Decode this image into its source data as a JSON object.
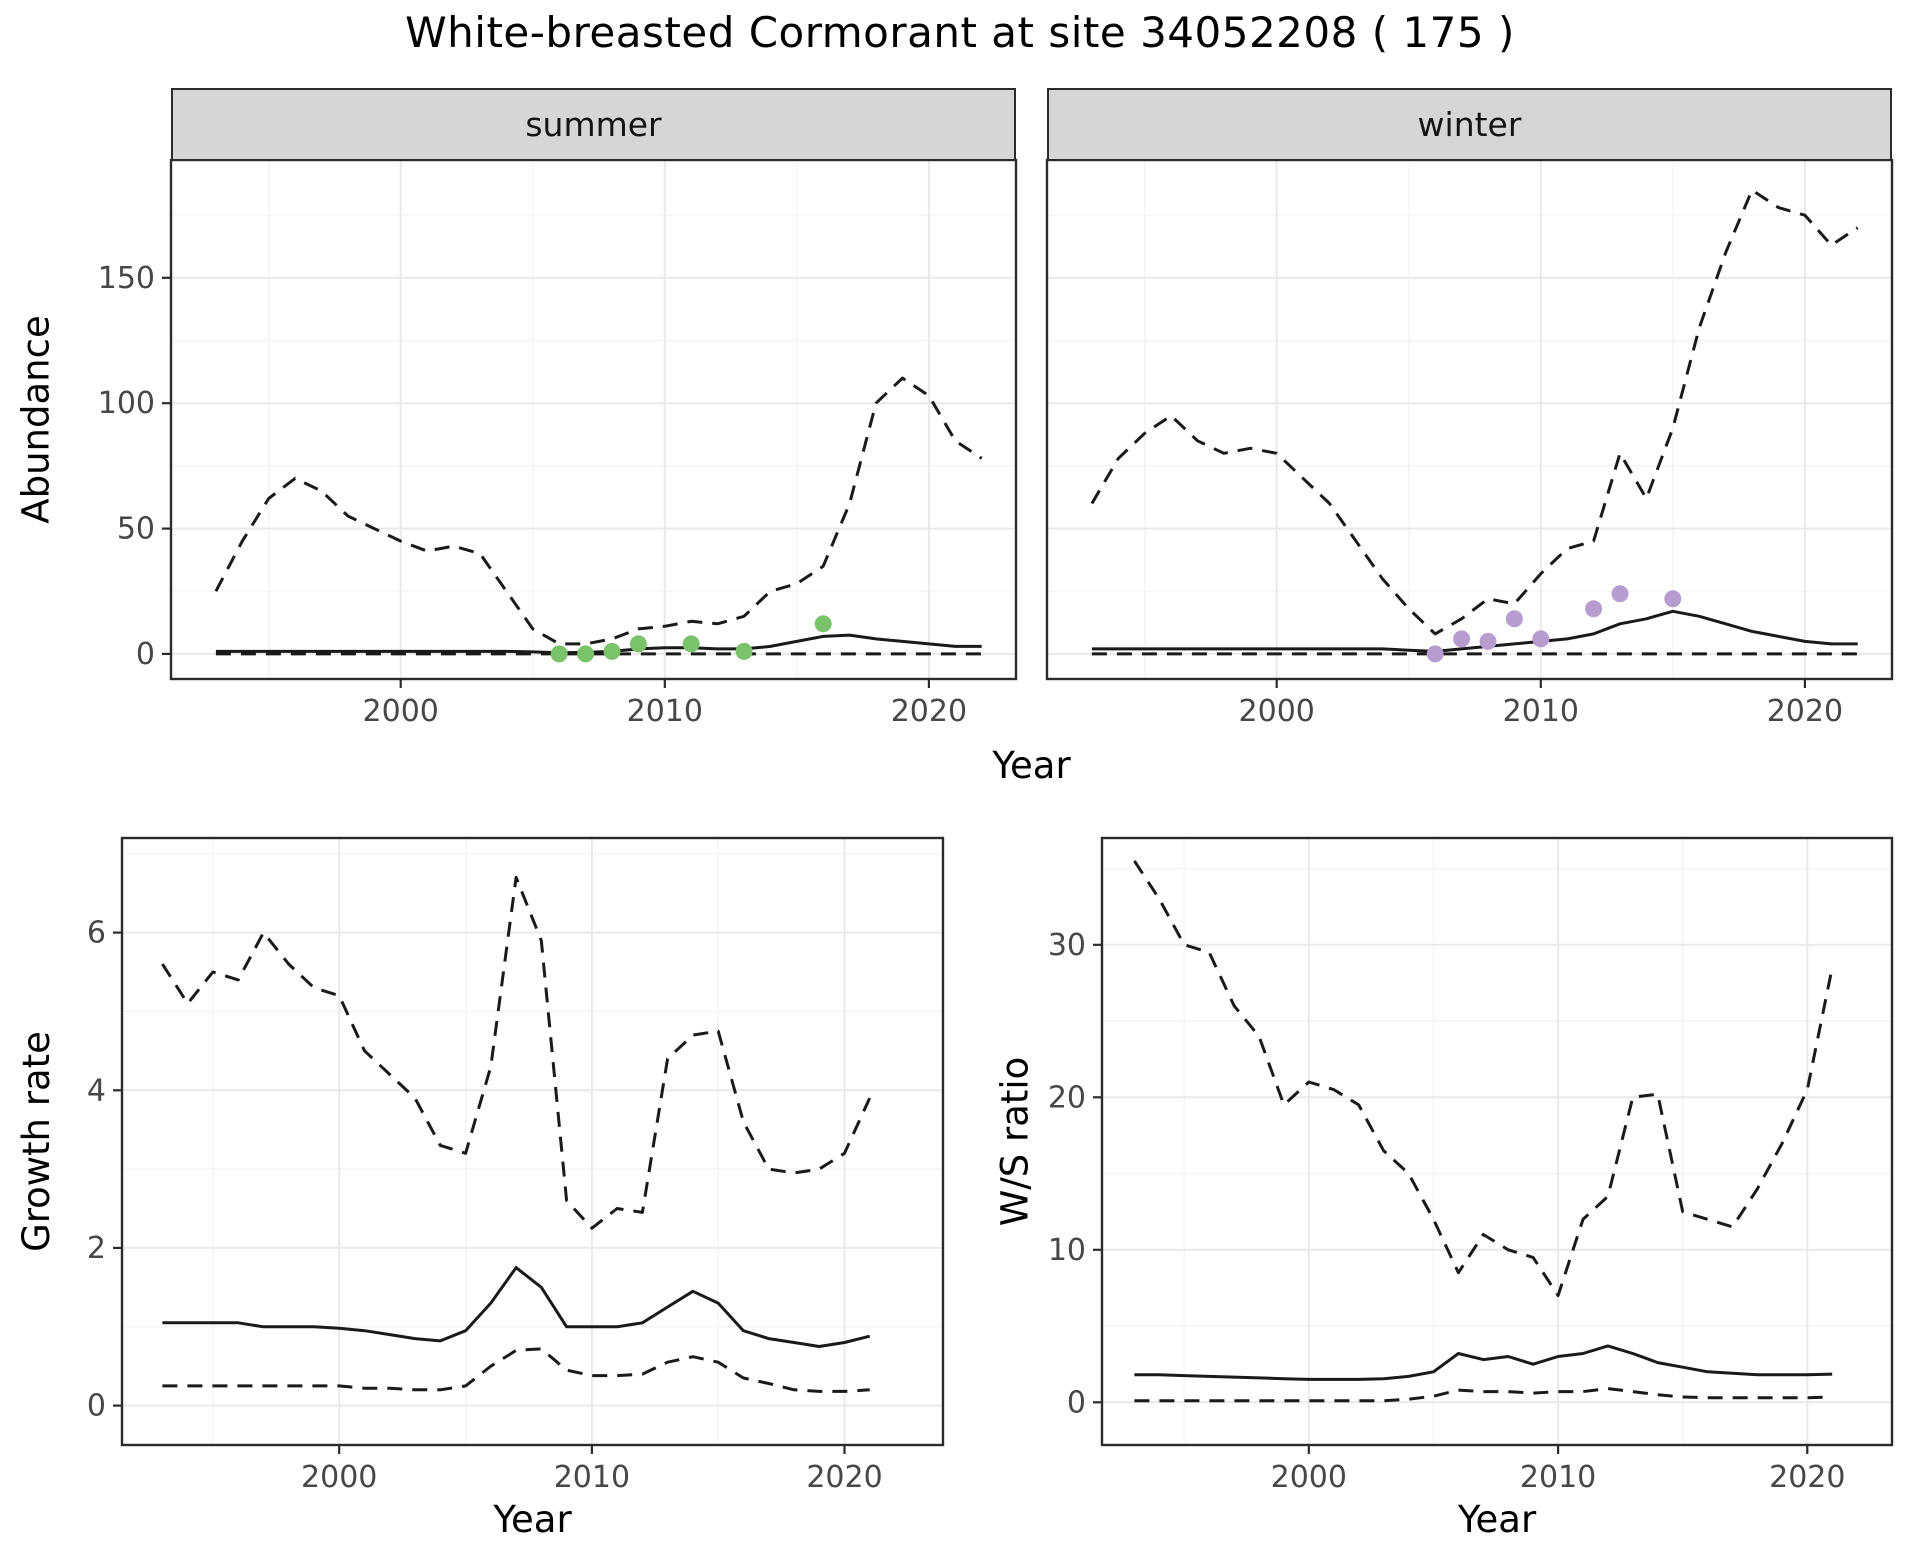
{
  "title": "White-breasted Cormorant at site 34052208 ( 175 )",
  "colors": {
    "accent_green": "#7ac36a",
    "accent_purple": "#b79cd0",
    "line": "#1a1a1a",
    "grid_major": "#e9e9e9",
    "grid_minor": "#f4f4f4",
    "strip_bg": "#d6d6d6",
    "border": "#2b2b2b",
    "tick_text": "#474747"
  },
  "chart_data": [
    {
      "id": "abundance-summer",
      "type": "line",
      "facet_label": "summer",
      "ylabel": "Abundance",
      "xlabel": "Year",
      "xlim": [
        1991.3,
        2023.3
      ],
      "ylim": [
        -10,
        197
      ],
      "xticks": [
        2000,
        2010,
        2020
      ],
      "yticks": [
        0,
        50,
        100,
        150
      ],
      "x": [
        1993,
        1994,
        1995,
        1996,
        1997,
        1998,
        1999,
        2000,
        2001,
        2002,
        2003,
        2004,
        2005,
        2006,
        2007,
        2008,
        2009,
        2010,
        2011,
        2012,
        2013,
        2014,
        2015,
        2016,
        2017,
        2018,
        2019,
        2020,
        2021,
        2022
      ],
      "series": [
        {
          "name": "upper-ci",
          "style": "dashed",
          "values": [
            25,
            45,
            62,
            70,
            65,
            55,
            50,
            45,
            41,
            43,
            40,
            25,
            10,
            4,
            4,
            6,
            10,
            11,
            13,
            12,
            15,
            25,
            28,
            35,
            60,
            100,
            110,
            103,
            85,
            78
          ]
        },
        {
          "name": "mean",
          "style": "solid",
          "values": [
            1,
            1,
            1,
            1,
            1,
            1,
            1,
            1,
            1,
            1,
            1,
            1,
            0.8,
            0.5,
            0.6,
            1,
            2,
            2.5,
            2.5,
            2,
            2,
            3,
            5,
            7,
            7.5,
            6,
            5,
            4,
            3,
            3
          ]
        },
        {
          "name": "lower-ci",
          "style": "dashed",
          "values": [
            0,
            0,
            0,
            0,
            0,
            0,
            0,
            0,
            0,
            0,
            0,
            0,
            0,
            0,
            0,
            0,
            0,
            0,
            0,
            0,
            0,
            0,
            0,
            0,
            0,
            0,
            0,
            0,
            0,
            0
          ]
        }
      ],
      "points": {
        "name": "observed-counts",
        "color": "#7ac36a",
        "x": [
          2006,
          2007,
          2008,
          2009,
          2011,
          2013,
          2016
        ],
        "y": [
          0,
          0,
          1,
          4,
          4,
          1,
          12
        ]
      }
    },
    {
      "id": "abundance-winter",
      "type": "line",
      "facet_label": "winter",
      "ylabel": "Abundance",
      "xlabel": "Year",
      "xlim": [
        1991.3,
        2023.3
      ],
      "ylim": [
        -10,
        197
      ],
      "xticks": [
        2000,
        2010,
        2020
      ],
      "yticks": [
        0,
        50,
        100,
        150
      ],
      "x": [
        1993,
        1994,
        1995,
        1996,
        1997,
        1998,
        1999,
        2000,
        2001,
        2002,
        2003,
        2004,
        2005,
        2006,
        2007,
        2008,
        2009,
        2010,
        2011,
        2012,
        2013,
        2014,
        2015,
        2016,
        2017,
        2018,
        2019,
        2020,
        2021,
        2022
      ],
      "series": [
        {
          "name": "upper-ci",
          "style": "dashed",
          "values": [
            60,
            78,
            88,
            95,
            85,
            80,
            82,
            80,
            70,
            60,
            45,
            30,
            18,
            8,
            14,
            22,
            20,
            32,
            42,
            45,
            80,
            62,
            90,
            130,
            160,
            185,
            178,
            175,
            163,
            170
          ]
        },
        {
          "name": "mean",
          "style": "solid",
          "values": [
            2,
            2,
            2,
            2,
            2,
            2,
            2,
            2,
            2,
            2,
            2,
            2,
            1.5,
            1,
            2,
            3,
            4,
            5,
            6,
            8,
            12,
            14,
            17,
            15,
            12,
            9,
            7,
            5,
            4,
            4
          ]
        },
        {
          "name": "lower-ci",
          "style": "dashed",
          "values": [
            0,
            0,
            0,
            0,
            0,
            0,
            0,
            0,
            0,
            0,
            0,
            0,
            0,
            0,
            0,
            0,
            0,
            0,
            0,
            0,
            0,
            0,
            0,
            0,
            0,
            0,
            0,
            0,
            0,
            0
          ]
        }
      ],
      "points": {
        "name": "observed-counts",
        "color": "#b79cd0",
        "x": [
          2006,
          2007,
          2008,
          2009,
          2010,
          2012,
          2013,
          2015
        ],
        "y": [
          0,
          6,
          5,
          14,
          6,
          18,
          24,
          22
        ]
      }
    },
    {
      "id": "growth-rate",
      "type": "line",
      "facet_label": null,
      "ylabel": "Growth rate",
      "xlabel": "Year",
      "xlim": [
        1991.4,
        2023.9
      ],
      "ylim": [
        -0.5,
        7.2
      ],
      "xticks": [
        2000,
        2010,
        2020
      ],
      "yticks": [
        0,
        2,
        4,
        6
      ],
      "x": [
        1993,
        1994,
        1995,
        1996,
        1997,
        1998,
        1999,
        2000,
        2001,
        2002,
        2003,
        2004,
        2005,
        2006,
        2007,
        2008,
        2009,
        2010,
        2011,
        2012,
        2013,
        2014,
        2015,
        2016,
        2017,
        2018,
        2019,
        2020,
        2021
      ],
      "series": [
        {
          "name": "upper-ci",
          "style": "dashed",
          "values": [
            5.6,
            5.1,
            5.5,
            5.4,
            6.0,
            5.6,
            5.3,
            5.2,
            4.5,
            4.2,
            3.9,
            3.3,
            3.2,
            4.3,
            6.7,
            5.9,
            2.6,
            2.25,
            2.5,
            2.45,
            4.4,
            4.7,
            4.75,
            3.6,
            3.0,
            2.95,
            3.0,
            3.2,
            3.9
          ]
        },
        {
          "name": "mean",
          "style": "solid",
          "values": [
            1.05,
            1.05,
            1.05,
            1.05,
            1.0,
            1.0,
            1.0,
            0.98,
            0.95,
            0.9,
            0.85,
            0.82,
            0.95,
            1.3,
            1.75,
            1.5,
            1.0,
            1.0,
            1.0,
            1.05,
            1.25,
            1.45,
            1.3,
            0.95,
            0.85,
            0.8,
            0.75,
            0.8,
            0.88
          ]
        },
        {
          "name": "lower-ci",
          "style": "dashed",
          "values": [
            0.25,
            0.25,
            0.25,
            0.25,
            0.25,
            0.25,
            0.25,
            0.25,
            0.22,
            0.22,
            0.2,
            0.2,
            0.25,
            0.5,
            0.7,
            0.72,
            0.45,
            0.38,
            0.38,
            0.4,
            0.55,
            0.62,
            0.55,
            0.35,
            0.28,
            0.2,
            0.18,
            0.18,
            0.2
          ]
        }
      ],
      "points": null
    },
    {
      "id": "ws-ratio",
      "type": "line",
      "facet_label": null,
      "ylabel": "W/S ratio",
      "xlabel": "Year",
      "xlim": [
        1991.7,
        2023.4
      ],
      "ylim": [
        -2.8,
        37
      ],
      "xticks": [
        2000,
        2010,
        2020
      ],
      "yticks": [
        0,
        10,
        20,
        30
      ],
      "x": [
        1993,
        1994,
        1995,
        1996,
        1997,
        1998,
        1999,
        2000,
        2001,
        2002,
        2003,
        2004,
        2005,
        2006,
        2007,
        2008,
        2009,
        2010,
        2011,
        2012,
        2013,
        2014,
        2015,
        2016,
        2017,
        2018,
        2019,
        2020,
        2021
      ],
      "series": [
        {
          "name": "upper-ci",
          "style": "dashed",
          "values": [
            35.5,
            33,
            30,
            29.5,
            26,
            24,
            19.5,
            21,
            20.5,
            19.5,
            16.5,
            15,
            12,
            8.5,
            11,
            10,
            9.5,
            7,
            12,
            13.5,
            20,
            20.2,
            12.5,
            12,
            11.5,
            14,
            17,
            20.5,
            28.5
          ]
        },
        {
          "name": "mean",
          "style": "solid",
          "values": [
            1.8,
            1.8,
            1.75,
            1.7,
            1.65,
            1.6,
            1.55,
            1.5,
            1.5,
            1.5,
            1.55,
            1.7,
            2.0,
            3.2,
            2.8,
            3.0,
            2.5,
            3.0,
            3.2,
            3.7,
            3.2,
            2.6,
            2.3,
            2.0,
            1.9,
            1.8,
            1.8,
            1.8,
            1.85
          ]
        },
        {
          "name": "lower-ci",
          "style": "dashed",
          "values": [
            0.1,
            0.1,
            0.1,
            0.1,
            0.1,
            0.1,
            0.1,
            0.1,
            0.1,
            0.1,
            0.1,
            0.2,
            0.4,
            0.8,
            0.7,
            0.7,
            0.6,
            0.7,
            0.7,
            0.9,
            0.7,
            0.5,
            0.35,
            0.3,
            0.3,
            0.3,
            0.3,
            0.3,
            0.35
          ]
        }
      ],
      "points": null
    }
  ]
}
